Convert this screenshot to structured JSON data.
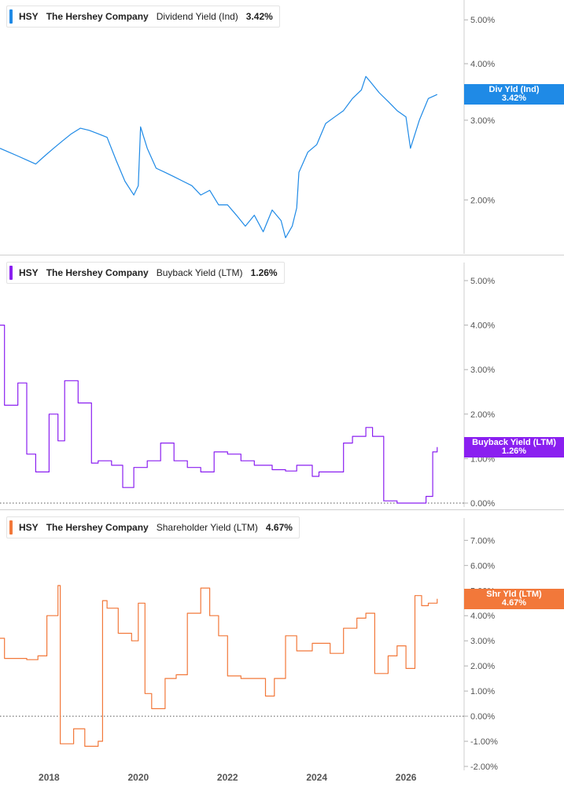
{
  "panels": [
    {
      "ticker": "HSY",
      "company": "The Hershey Company",
      "metric": "Dividend Yield (Ind)",
      "value": "3.42%",
      "color": "#1f8ae6",
      "tag_line1": "Div Yld (Ind)",
      "tag_line2": "3.42%"
    },
    {
      "ticker": "HSY",
      "company": "The Hershey Company",
      "metric": "Buyback Yield (LTM)",
      "value": "1.26%",
      "color": "#8a1ff0",
      "tag_line1": "Buyback Yield (LTM)",
      "tag_line2": "1.26%"
    },
    {
      "ticker": "HSY",
      "company": "The Hershey Company",
      "metric": "Shareholder Yield (LTM)",
      "value": "4.67%",
      "color": "#f2783a",
      "tag_line1": "Shr Yld (LTM)",
      "tag_line2": "4.67%"
    }
  ],
  "x_axis_labels": [
    "2018",
    "2020",
    "2022",
    "2024",
    "2026"
  ],
  "chart_data": [
    {
      "type": "line",
      "title": "HSY The Hershey Company Dividend Yield (Ind) 3.42%",
      "yscale": "log",
      "ylim": [
        1.55,
        5.4
      ],
      "yticks": [
        2.0,
        3.0,
        4.0,
        5.0
      ],
      "ytick_labels": [
        "2.00%",
        "3.00%",
        "4.00%",
        "5.00%"
      ],
      "grid": false,
      "legend": "top-left",
      "series": [
        {
          "name": "Dividend Yield (Ind)",
          "x": [
            2016.9,
            2017.1,
            2017.3,
            2017.5,
            2017.7,
            2017.9,
            2018.1,
            2018.3,
            2018.5,
            2018.7,
            2018.9,
            2019.1,
            2019.3,
            2019.5,
            2019.7,
            2019.9,
            2020.0,
            2020.05,
            2020.2,
            2020.4,
            2020.6,
            2020.8,
            2021.0,
            2021.2,
            2021.4,
            2021.6,
            2021.8,
            2022.0,
            2022.2,
            2022.4,
            2022.6,
            2022.8,
            2023.0,
            2023.2,
            2023.3,
            2023.45,
            2023.55,
            2023.6,
            2023.8,
            2024.0,
            2024.2,
            2024.4,
            2024.6,
            2024.8,
            2025.0,
            2025.1,
            2025.2,
            2025.4,
            2025.6,
            2025.8,
            2026.0,
            2026.1,
            2026.3,
            2026.5,
            2026.7
          ],
          "values": [
            2.6,
            2.55,
            2.5,
            2.45,
            2.4,
            2.5,
            2.6,
            2.7,
            2.8,
            2.88,
            2.85,
            2.8,
            2.75,
            2.45,
            2.2,
            2.05,
            2.15,
            2.9,
            2.6,
            2.35,
            2.3,
            2.25,
            2.2,
            2.15,
            2.05,
            2.1,
            1.95,
            1.95,
            1.85,
            1.75,
            1.85,
            1.7,
            1.9,
            1.8,
            1.65,
            1.75,
            1.92,
            2.3,
            2.55,
            2.65,
            2.95,
            3.05,
            3.15,
            3.35,
            3.5,
            3.75,
            3.65,
            3.45,
            3.3,
            3.15,
            3.05,
            2.6,
            3.0,
            3.35,
            3.42
          ]
        }
      ]
    },
    {
      "type": "line",
      "title": "HSY The Hershey Company Buyback Yield (LTM) 1.26%",
      "ylim": [
        0.0,
        5.3
      ],
      "yticks": [
        0.0,
        1.0,
        2.0,
        3.0,
        4.0,
        5.0
      ],
      "ytick_labels": [
        "0.00%",
        "1.00%",
        "2.00%",
        "3.00%",
        "4.00%",
        "5.00%"
      ],
      "reference_line": 0.0,
      "grid": false,
      "legend": "top-left",
      "series": [
        {
          "name": "Buyback Yield (LTM)",
          "step": true,
          "x": [
            2016.9,
            2017.0,
            2017.3,
            2017.5,
            2017.7,
            2018.0,
            2018.2,
            2018.35,
            2018.65,
            2018.95,
            2019.1,
            2019.4,
            2019.65,
            2019.9,
            2020.2,
            2020.5,
            2020.8,
            2021.1,
            2021.4,
            2021.7,
            2022.0,
            2022.3,
            2022.6,
            2023.0,
            2023.3,
            2023.55,
            2023.9,
            2024.05,
            2024.3,
            2024.6,
            2024.8,
            2025.1,
            2025.25,
            2025.5,
            2025.8,
            2026.2,
            2026.45,
            2026.6,
            2026.7
          ],
          "values": [
            4.0,
            2.2,
            2.7,
            1.1,
            0.7,
            2.0,
            1.4,
            2.75,
            2.25,
            0.9,
            0.95,
            0.85,
            0.35,
            0.8,
            0.95,
            1.35,
            0.95,
            0.8,
            0.7,
            1.15,
            1.1,
            0.95,
            0.85,
            0.75,
            0.72,
            0.85,
            0.6,
            0.7,
            0.7,
            1.35,
            1.5,
            1.7,
            1.5,
            0.05,
            0.0,
            0.0,
            0.15,
            1.15,
            1.26
          ]
        }
      ]
    },
    {
      "type": "line",
      "title": "HSY The Hershey Company Shareholder Yield (LTM) 4.67%",
      "ylim": [
        -2.0,
        7.7
      ],
      "yticks": [
        -2.0,
        -1.0,
        0.0,
        1.0,
        2.0,
        3.0,
        4.0,
        5.0,
        6.0,
        7.0
      ],
      "ytick_labels": [
        "-2.00%",
        "-1.00%",
        "0.00%",
        "1.00%",
        "2.00%",
        "3.00%",
        "4.00%",
        "5.00%",
        "6.00%",
        "7.00%"
      ],
      "reference_line": 0.0,
      "grid": false,
      "legend": "top-left",
      "series": [
        {
          "name": "Shareholder Yield (LTM)",
          "step": true,
          "x": [
            2016.9,
            2017.0,
            2017.2,
            2017.5,
            2017.75,
            2017.95,
            2018.2,
            2018.25,
            2018.55,
            2018.8,
            2019.1,
            2019.2,
            2019.3,
            2019.55,
            2019.85,
            2020.0,
            2020.15,
            2020.3,
            2020.6,
            2020.85,
            2021.1,
            2021.4,
            2021.6,
            2021.8,
            2022.0,
            2022.3,
            2022.6,
            2022.85,
            2023.05,
            2023.3,
            2023.55,
            2023.9,
            2024.1,
            2024.3,
            2024.6,
            2024.9,
            2025.1,
            2025.3,
            2025.6,
            2025.8,
            2026.0,
            2026.2,
            2026.35,
            2026.5,
            2026.7
          ],
          "values": [
            3.1,
            2.3,
            2.3,
            2.25,
            2.4,
            4.0,
            5.2,
            -1.1,
            -0.5,
            -1.2,
            -1.0,
            4.6,
            4.3,
            3.3,
            3.0,
            4.5,
            0.9,
            0.3,
            1.5,
            1.65,
            4.1,
            5.1,
            4.0,
            3.2,
            1.6,
            1.5,
            1.5,
            0.8,
            1.5,
            3.2,
            2.6,
            2.9,
            2.9,
            2.5,
            3.5,
            3.9,
            4.1,
            1.7,
            2.4,
            2.8,
            1.9,
            4.8,
            4.4,
            4.5,
            4.67
          ]
        }
      ]
    }
  ]
}
